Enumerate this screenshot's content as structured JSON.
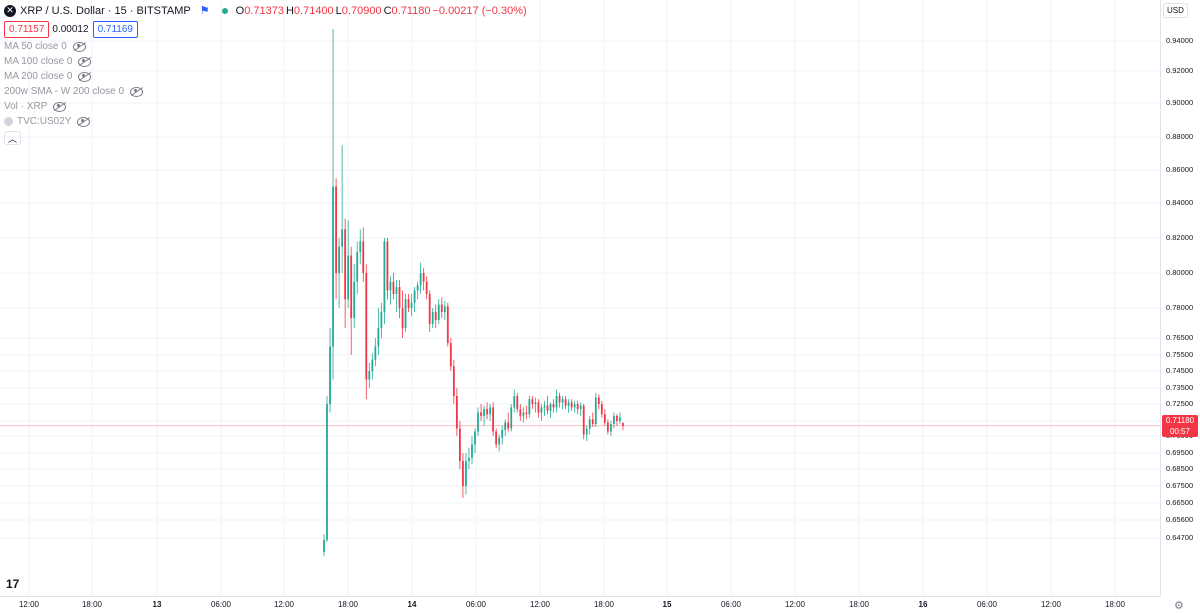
{
  "header": {
    "symbol_title": "XRP / U.S. Dollar · 15 · BITSTAMP",
    "ohlc": [
      {
        "k": "O",
        "v": "0.71373"
      },
      {
        "k": "H",
        "v": "0.71400"
      },
      {
        "k": "L",
        "v": "0.70900"
      },
      {
        "k": "C",
        "v": "0.71180"
      }
    ],
    "change": "−0.00217 (−0.30%)",
    "sell_price": "0.71157",
    "spread": "0.00012",
    "buy_price": "0.71169"
  },
  "indicators": [
    {
      "label": "MA 50 close 0"
    },
    {
      "label": "MA 100 close 0"
    },
    {
      "label": "MA 200 close 0"
    },
    {
      "label": "200w SMA - W 200 close 0"
    },
    {
      "label": "Vol · XRP"
    },
    {
      "label": "TVC:US02Y"
    }
  ],
  "currency": "USD",
  "last_price": {
    "price": "0.71180",
    "countdown": "00:57"
  },
  "colors": {
    "up": "#22ab94",
    "down": "#f23645",
    "grid": "#f0f3fa",
    "price_line": "#f23645"
  },
  "chart_data": {
    "type": "candlestick",
    "y_ticks": [
      "0.94000",
      "0.92000",
      "0.90000",
      "0.88000",
      "0.86000",
      "0.84000",
      "0.82000",
      "0.80000",
      "0.78000",
      "0.76500",
      "0.75500",
      "0.74500",
      "0.73500",
      "0.72500",
      "0.71500",
      "0.70500",
      "0.69500",
      "0.68500",
      "0.67500",
      "0.66500",
      "0.65600",
      "0.64700"
    ],
    "x_ticks": [
      "12:00",
      "18:00",
      "13",
      "06:00",
      "12:00",
      "18:00",
      "14",
      "06:00",
      "12:00",
      "18:00",
      "15",
      "06:00",
      "12:00",
      "18:00",
      "16",
      "06:00",
      "12:00",
      "18:00"
    ],
    "last_close": 0.7118,
    "series": [
      {
        "o": 0.64,
        "h": 0.649,
        "l": 0.638,
        "c": 0.646
      },
      {
        "o": 0.646,
        "h": 0.73,
        "l": 0.645,
        "c": 0.725
      },
      {
        "o": 0.725,
        "h": 0.77,
        "l": 0.72,
        "c": 0.76
      },
      {
        "o": 0.76,
        "h": 0.948,
        "l": 0.74,
        "c": 0.85
      },
      {
        "o": 0.85,
        "h": 0.855,
        "l": 0.785,
        "c": 0.8
      },
      {
        "o": 0.8,
        "h": 0.82,
        "l": 0.78,
        "c": 0.815
      },
      {
        "o": 0.815,
        "h": 0.875,
        "l": 0.8,
        "c": 0.825
      },
      {
        "o": 0.825,
        "h": 0.831,
        "l": 0.77,
        "c": 0.785
      },
      {
        "o": 0.785,
        "h": 0.83,
        "l": 0.78,
        "c": 0.81
      },
      {
        "o": 0.81,
        "h": 0.815,
        "l": 0.755,
        "c": 0.775
      },
      {
        "o": 0.775,
        "h": 0.805,
        "l": 0.77,
        "c": 0.795
      },
      {
        "o": 0.795,
        "h": 0.818,
        "l": 0.788,
        "c": 0.812
      },
      {
        "o": 0.812,
        "h": 0.825,
        "l": 0.805,
        "c": 0.818
      },
      {
        "o": 0.818,
        "h": 0.826,
        "l": 0.795,
        "c": 0.8
      },
      {
        "o": 0.8,
        "h": 0.805,
        "l": 0.728,
        "c": 0.74
      },
      {
        "o": 0.74,
        "h": 0.75,
        "l": 0.735,
        "c": 0.745
      },
      {
        "o": 0.745,
        "h": 0.756,
        "l": 0.74,
        "c": 0.752
      },
      {
        "o": 0.752,
        "h": 0.765,
        "l": 0.748,
        "c": 0.76
      },
      {
        "o": 0.76,
        "h": 0.78,
        "l": 0.755,
        "c": 0.77
      },
      {
        "o": 0.77,
        "h": 0.783,
        "l": 0.765,
        "c": 0.778
      },
      {
        "o": 0.778,
        "h": 0.82,
        "l": 0.772,
        "c": 0.818
      },
      {
        "o": 0.818,
        "h": 0.82,
        "l": 0.785,
        "c": 0.79
      },
      {
        "o": 0.79,
        "h": 0.798,
        "l": 0.782,
        "c": 0.795
      },
      {
        "o": 0.795,
        "h": 0.8,
        "l": 0.785,
        "c": 0.788
      },
      {
        "o": 0.788,
        "h": 0.796,
        "l": 0.778,
        "c": 0.792
      },
      {
        "o": 0.792,
        "h": 0.796,
        "l": 0.775,
        "c": 0.78
      },
      {
        "o": 0.78,
        "h": 0.79,
        "l": 0.765,
        "c": 0.77
      },
      {
        "o": 0.77,
        "h": 0.788,
        "l": 0.768,
        "c": 0.785
      },
      {
        "o": 0.785,
        "h": 0.788,
        "l": 0.778,
        "c": 0.78
      },
      {
        "o": 0.78,
        "h": 0.788,
        "l": 0.776,
        "c": 0.783
      },
      {
        "o": 0.783,
        "h": 0.792,
        "l": 0.778,
        "c": 0.79
      },
      {
        "o": 0.79,
        "h": 0.795,
        "l": 0.785,
        "c": 0.793
      },
      {
        "o": 0.793,
        "h": 0.806,
        "l": 0.788,
        "c": 0.8
      },
      {
        "o": 0.8,
        "h": 0.803,
        "l": 0.79,
        "c": 0.795
      },
      {
        "o": 0.795,
        "h": 0.798,
        "l": 0.785,
        "c": 0.788
      },
      {
        "o": 0.788,
        "h": 0.79,
        "l": 0.768,
        "c": 0.772
      },
      {
        "o": 0.772,
        "h": 0.78,
        "l": 0.77,
        "c": 0.778
      },
      {
        "o": 0.778,
        "h": 0.782,
        "l": 0.77,
        "c": 0.774
      },
      {
        "o": 0.774,
        "h": 0.785,
        "l": 0.772,
        "c": 0.782
      },
      {
        "o": 0.782,
        "h": 0.786,
        "l": 0.775,
        "c": 0.778
      },
      {
        "o": 0.778,
        "h": 0.784,
        "l": 0.774,
        "c": 0.781
      },
      {
        "o": 0.781,
        "h": 0.783,
        "l": 0.76,
        "c": 0.762
      },
      {
        "o": 0.762,
        "h": 0.765,
        "l": 0.745,
        "c": 0.748
      },
      {
        "o": 0.748,
        "h": 0.752,
        "l": 0.725,
        "c": 0.73
      },
      {
        "o": 0.73,
        "h": 0.735,
        "l": 0.705,
        "c": 0.71
      },
      {
        "o": 0.71,
        "h": 0.715,
        "l": 0.685,
        "c": 0.69
      },
      {
        "o": 0.69,
        "h": 0.695,
        "l": 0.668,
        "c": 0.675
      },
      {
        "o": 0.675,
        "h": 0.695,
        "l": 0.67,
        "c": 0.69
      },
      {
        "o": 0.69,
        "h": 0.698,
        "l": 0.685,
        "c": 0.692
      },
      {
        "o": 0.692,
        "h": 0.705,
        "l": 0.688,
        "c": 0.7
      },
      {
        "o": 0.7,
        "h": 0.71,
        "l": 0.695,
        "c": 0.708
      },
      {
        "o": 0.708,
        "h": 0.723,
        "l": 0.705,
        "c": 0.72
      },
      {
        "o": 0.72,
        "h": 0.725,
        "l": 0.715,
        "c": 0.718
      },
      {
        "o": 0.718,
        "h": 0.724,
        "l": 0.712,
        "c": 0.722
      },
      {
        "o": 0.722,
        "h": 0.726,
        "l": 0.716,
        "c": 0.719
      },
      {
        "o": 0.719,
        "h": 0.725,
        "l": 0.715,
        "c": 0.723
      },
      {
        "o": 0.723,
        "h": 0.726,
        "l": 0.705,
        "c": 0.708
      },
      {
        "o": 0.708,
        "h": 0.71,
        "l": 0.698,
        "c": 0.7
      },
      {
        "o": 0.7,
        "h": 0.706,
        "l": 0.696,
        "c": 0.704
      },
      {
        "o": 0.704,
        "h": 0.712,
        "l": 0.7,
        "c": 0.709
      },
      {
        "o": 0.709,
        "h": 0.716,
        "l": 0.705,
        "c": 0.714
      },
      {
        "o": 0.714,
        "h": 0.72,
        "l": 0.708,
        "c": 0.71
      },
      {
        "o": 0.71,
        "h": 0.725,
        "l": 0.708,
        "c": 0.723
      },
      {
        "o": 0.723,
        "h": 0.734,
        "l": 0.72,
        "c": 0.73
      },
      {
        "o": 0.73,
        "h": 0.732,
        "l": 0.72,
        "c": 0.722
      },
      {
        "o": 0.722,
        "h": 0.725,
        "l": 0.715,
        "c": 0.718
      },
      {
        "o": 0.718,
        "h": 0.723,
        "l": 0.714,
        "c": 0.72
      },
      {
        "o": 0.72,
        "h": 0.724,
        "l": 0.716,
        "c": 0.719
      },
      {
        "o": 0.719,
        "h": 0.73,
        "l": 0.717,
        "c": 0.728
      },
      {
        "o": 0.728,
        "h": 0.73,
        "l": 0.722,
        "c": 0.725
      },
      {
        "o": 0.725,
        "h": 0.729,
        "l": 0.72,
        "c": 0.726
      },
      {
        "o": 0.726,
        "h": 0.728,
        "l": 0.717,
        "c": 0.72
      },
      {
        "o": 0.72,
        "h": 0.725,
        "l": 0.715,
        "c": 0.723
      },
      {
        "o": 0.723,
        "h": 0.727,
        "l": 0.718,
        "c": 0.724
      },
      {
        "o": 0.724,
        "h": 0.73,
        "l": 0.719,
        "c": 0.721
      },
      {
        "o": 0.721,
        "h": 0.726,
        "l": 0.717,
        "c": 0.725
      },
      {
        "o": 0.725,
        "h": 0.728,
        "l": 0.72,
        "c": 0.723
      },
      {
        "o": 0.723,
        "h": 0.734,
        "l": 0.72,
        "c": 0.73
      },
      {
        "o": 0.73,
        "h": 0.732,
        "l": 0.723,
        "c": 0.726
      },
      {
        "o": 0.726,
        "h": 0.73,
        "l": 0.722,
        "c": 0.728
      },
      {
        "o": 0.728,
        "h": 0.73,
        "l": 0.722,
        "c": 0.724
      },
      {
        "o": 0.724,
        "h": 0.728,
        "l": 0.72,
        "c": 0.726
      },
      {
        "o": 0.726,
        "h": 0.728,
        "l": 0.721,
        "c": 0.723
      },
      {
        "o": 0.723,
        "h": 0.727,
        "l": 0.72,
        "c": 0.725
      },
      {
        "o": 0.725,
        "h": 0.727,
        "l": 0.719,
        "c": 0.722
      },
      {
        "o": 0.722,
        "h": 0.726,
        "l": 0.718,
        "c": 0.724
      },
      {
        "o": 0.724,
        "h": 0.725,
        "l": 0.703,
        "c": 0.706
      },
      {
        "o": 0.706,
        "h": 0.712,
        "l": 0.702,
        "c": 0.71
      },
      {
        "o": 0.71,
        "h": 0.718,
        "l": 0.706,
        "c": 0.716
      },
      {
        "o": 0.716,
        "h": 0.72,
        "l": 0.711,
        "c": 0.713
      },
      {
        "o": 0.713,
        "h": 0.732,
        "l": 0.711,
        "c": 0.729
      },
      {
        "o": 0.729,
        "h": 0.731,
        "l": 0.722,
        "c": 0.725
      },
      {
        "o": 0.725,
        "h": 0.727,
        "l": 0.717,
        "c": 0.719
      },
      {
        "o": 0.719,
        "h": 0.722,
        "l": 0.712,
        "c": 0.714
      },
      {
        "o": 0.714,
        "h": 0.716,
        "l": 0.706,
        "c": 0.708
      },
      {
        "o": 0.708,
        "h": 0.715,
        "l": 0.705,
        "c": 0.713
      },
      {
        "o": 0.713,
        "h": 0.72,
        "l": 0.71,
        "c": 0.718
      },
      {
        "o": 0.718,
        "h": 0.719,
        "l": 0.712,
        "c": 0.715
      },
      {
        "o": 0.715,
        "h": 0.72,
        "l": 0.713,
        "c": 0.717
      },
      {
        "o": 0.7137,
        "h": 0.714,
        "l": 0.709,
        "c": 0.7118
      }
    ]
  }
}
